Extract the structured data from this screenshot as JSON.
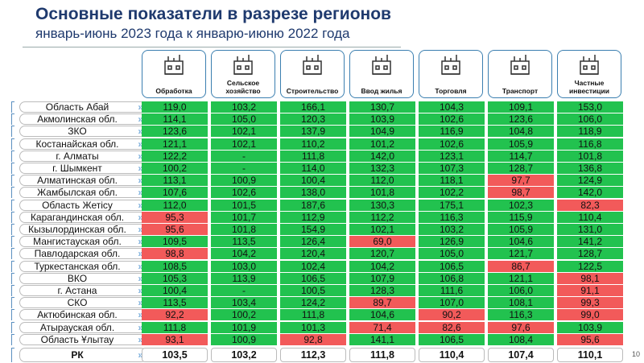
{
  "title": "Основные показатели в разрезе регионов",
  "subtitle": "январь-июнь 2023 года к январю-июню 2022 года",
  "colors": {
    "above_100": "#22c24f",
    "below_100": "#f25a5a"
  },
  "columns": [
    {
      "label": "Обработка",
      "icon": "factory-icon"
    },
    {
      "label": "Сельское хозяйство",
      "icon": "tractor-icon"
    },
    {
      "label": "Строительство",
      "icon": "crane-icon"
    },
    {
      "label": "Ввод жилья",
      "icon": "building-icon"
    },
    {
      "label": "Торговля",
      "icon": "globe-trade-icon"
    },
    {
      "label": "Транспорт",
      "icon": "truck-icon"
    },
    {
      "label": "Частные инвестиции",
      "icon": "coins-plant-icon"
    }
  ],
  "rows": [
    {
      "region": "Область Абай",
      "values": [
        "119,0",
        "103,2",
        "166,1",
        "130,7",
        "104,3",
        "109,1",
        "153,0"
      ]
    },
    {
      "region": "Акмолинская обл.",
      "values": [
        "114,1",
        "105,0",
        "120,3",
        "103,9",
        "102,6",
        "123,6",
        "106,0"
      ]
    },
    {
      "region": "ЗКО",
      "values": [
        "123,6",
        "102,1",
        "137,9",
        "104,9",
        "116,9",
        "104,8",
        "118,9"
      ]
    },
    {
      "region": "Костанайская обл.",
      "values": [
        "121,1",
        "102,1",
        "110,2",
        "101,2",
        "102,6",
        "105,9",
        "116,8"
      ]
    },
    {
      "region": "г. Алматы",
      "values": [
        "122,2",
        "-",
        "111,8",
        "142,0",
        "123,1",
        "114,7",
        "101,8"
      ]
    },
    {
      "region": "г. Шымкент",
      "values": [
        "100,2",
        "-",
        "114,0",
        "132,3",
        "107,3",
        "128,7",
        "136,8"
      ]
    },
    {
      "region": "Алматинская обл.",
      "values": [
        "113,1",
        "100,9",
        "100,4",
        "112,0",
        "118,1",
        "97,7",
        "124,9"
      ]
    },
    {
      "region": "Жамбылская обл.",
      "values": [
        "107,6",
        "102,6",
        "138,0",
        "101,8",
        "102,2",
        "98,7",
        "142,0"
      ]
    },
    {
      "region": "Область Жетісу",
      "values": [
        "112,0",
        "101,5",
        "187,6",
        "130,3",
        "175,1",
        "102,3",
        "82,3"
      ]
    },
    {
      "region": "Карагандинская обл.",
      "values": [
        "95,3",
        "101,7",
        "112,9",
        "112,2",
        "116,3",
        "115,9",
        "110,4"
      ]
    },
    {
      "region": "Кызылординская обл.",
      "values": [
        "95,6",
        "101,8",
        "154,9",
        "102,1",
        "103,2",
        "105,9",
        "131,0"
      ]
    },
    {
      "region": "Мангистауская обл.",
      "values": [
        "109,5",
        "113,5",
        "126,4",
        "69,0",
        "126,9",
        "104,6",
        "141,2"
      ]
    },
    {
      "region": "Павлодарская обл.",
      "values": [
        "98,8",
        "104,2",
        "120,4",
        "120,7",
        "105,0",
        "121,7",
        "128,7"
      ]
    },
    {
      "region": "Туркестанская обл.",
      "values": [
        "108,5",
        "103,0",
        "102,4",
        "104,2",
        "106,5",
        "86,7",
        "122,5"
      ]
    },
    {
      "region": "ВКО",
      "values": [
        "105,3",
        "113,9",
        "106,5",
        "107,9",
        "106,8",
        "121,1",
        "98,1"
      ]
    },
    {
      "region": "г. Астана",
      "values": [
        "100,4",
        "-",
        "100,5",
        "128,3",
        "111,6",
        "106,0",
        "91,1"
      ]
    },
    {
      "region": "СКО",
      "values": [
        "113,5",
        "103,4",
        "124,2",
        "89,7",
        "107,0",
        "108,1",
        "99,3"
      ]
    },
    {
      "region": "Актюбинская обл.",
      "values": [
        "92,2",
        "100,2",
        "111,8",
        "104,6",
        "90,2",
        "116,3",
        "99,0"
      ]
    },
    {
      "region": "Атырауская обл.",
      "values": [
        "111,8",
        "101,9",
        "101,3",
        "71,4",
        "82,6",
        "97,6",
        "103,9"
      ]
    },
    {
      "region": "Область Ұлытау",
      "values": [
        "93,1",
        "100,9",
        "92,8",
        "141,1",
        "106,5",
        "108,4",
        "95,6"
      ]
    }
  ],
  "total": {
    "region": "РК",
    "values": [
      "103,5",
      "103,2",
      "112,3",
      "111,8",
      "110,4",
      "107,4",
      "110,1"
    ]
  },
  "page_number": "10"
}
